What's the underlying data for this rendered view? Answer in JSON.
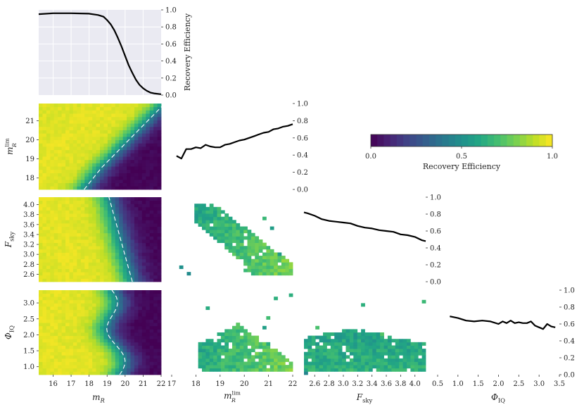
{
  "chart_data": {
    "type": "corner",
    "colormap": "viridis",
    "colorbar": {
      "label": "Recovery Efficiency",
      "ticks": [
        "0.0",
        "0.5",
        "1.0"
      ],
      "range": [
        0,
        1
      ],
      "location": "upper-right"
    },
    "efficiency_ticks": [
      "0.0",
      "0.2",
      "0.4",
      "0.6",
      "0.8",
      "1.0"
    ],
    "variables": [
      {
        "key": "mR",
        "xlabel": "m_R",
        "range": [
          15.2,
          22.0
        ],
        "ticks": [
          16,
          17,
          18,
          19,
          20,
          21,
          22
        ],
        "tick_labels": [
          "16",
          "17",
          "18",
          "19",
          "20",
          "21",
          "22"
        ]
      },
      {
        "key": "mlim",
        "xlabel": "m_R^lim",
        "range": [
          17.0,
          22.0
        ],
        "ticks": [
          17,
          18,
          19,
          20,
          21,
          22
        ],
        "tick_labels": [
          "17",
          "18",
          "19",
          "20",
          "21",
          "22"
        ],
        "yticks": [
          18,
          19,
          20,
          21
        ],
        "ytick_labels": [
          "18",
          "19",
          "20",
          "21"
        ],
        "yrange": [
          17.4,
          21.9
        ]
      },
      {
        "key": "fsky",
        "xlabel": "F_sky",
        "range": [
          2.45,
          4.15
        ],
        "ticks": [
          2.6,
          2.8,
          3.0,
          3.2,
          3.4,
          3.6,
          3.8,
          4.0
        ],
        "tick_labels": [
          "2.6",
          "2.8",
          "3.0",
          "3.2",
          "3.4",
          "3.6",
          "3.8",
          "4.0"
        ],
        "yticks": [
          2.6,
          2.8,
          3.0,
          3.2,
          3.4,
          3.6,
          3.8,
          4.0
        ],
        "ytick_labels": [
          "2.6",
          "2.8",
          "3.0",
          "3.2",
          "3.4",
          "3.6",
          "3.8",
          "4.0"
        ]
      },
      {
        "key": "phiiq",
        "xlabel": "Φ_IQ",
        "range": [
          0.5,
          3.5
        ],
        "ticks": [
          0.5,
          1.0,
          1.5,
          2.0,
          2.5,
          3.0,
          3.5
        ],
        "tick_labels": [
          "0.5",
          "1.0",
          "1.5",
          "2.0",
          "2.5",
          "3.0",
          "3.5"
        ],
        "yticks": [
          1.0,
          1.5,
          2.0,
          2.5,
          3.0
        ],
        "ytick_labels": [
          "1.0",
          "1.5",
          "2.0",
          "2.5",
          "3.0"
        ],
        "yrange": [
          0.75,
          3.4
        ]
      }
    ],
    "axis_labels": {
      "mR": {
        "main": "m",
        "sub": "R",
        "sup": ""
      },
      "mlim": {
        "main": "m",
        "sub": "R",
        "sup": "lim"
      },
      "fsky": {
        "main": "F",
        "sub": "sky",
        "sup": ""
      },
      "phiiq": {
        "main": "Φ",
        "sub": "IQ",
        "sup": ""
      }
    },
    "efficiency_label": "Recovery Efficiency",
    "diagonal": [
      {
        "var": "mR",
        "type": "line",
        "ylabel": "Recovery Efficiency",
        "ylim": [
          0,
          1
        ],
        "x": [
          15.2,
          16.0,
          17.0,
          18.0,
          18.5,
          18.8,
          19.0,
          19.2,
          19.4,
          19.6,
          19.8,
          20.0,
          20.2,
          20.4,
          20.6,
          20.8,
          21.0,
          21.2,
          21.4,
          21.6,
          22.0
        ],
        "y": [
          0.95,
          0.96,
          0.96,
          0.955,
          0.94,
          0.92,
          0.88,
          0.83,
          0.76,
          0.67,
          0.57,
          0.46,
          0.35,
          0.26,
          0.18,
          0.12,
          0.08,
          0.05,
          0.03,
          0.02,
          0.01
        ]
      },
      {
        "var": "mlim",
        "type": "line",
        "ylim": [
          0,
          1
        ],
        "x": [
          17.2,
          17.4,
          17.6,
          17.8,
          18.0,
          18.2,
          18.4,
          18.6,
          18.8,
          19.0,
          19.2,
          19.4,
          19.6,
          19.8,
          20.0,
          20.2,
          20.4,
          20.6,
          20.8,
          21.0,
          21.2,
          21.4,
          21.6,
          21.8,
          22.0
        ],
        "y": [
          0.39,
          0.36,
          0.47,
          0.47,
          0.49,
          0.48,
          0.52,
          0.5,
          0.49,
          0.49,
          0.52,
          0.53,
          0.55,
          0.57,
          0.58,
          0.6,
          0.62,
          0.64,
          0.66,
          0.67,
          0.7,
          0.71,
          0.73,
          0.74,
          0.76
        ]
      },
      {
        "var": "fsky",
        "type": "line",
        "ylim": [
          0,
          1
        ],
        "x": [
          2.45,
          2.5,
          2.6,
          2.7,
          2.8,
          2.9,
          3.0,
          3.1,
          3.2,
          3.3,
          3.4,
          3.5,
          3.6,
          3.7,
          3.8,
          3.9,
          4.0,
          4.1,
          4.15
        ],
        "y": [
          0.82,
          0.81,
          0.78,
          0.74,
          0.72,
          0.71,
          0.7,
          0.69,
          0.66,
          0.64,
          0.63,
          0.61,
          0.6,
          0.59,
          0.56,
          0.55,
          0.53,
          0.49,
          0.48
        ]
      },
      {
        "var": "phiiq",
        "type": "line",
        "ylim": [
          0,
          1
        ],
        "x": [
          0.8,
          1.0,
          1.2,
          1.4,
          1.6,
          1.8,
          2.0,
          2.1,
          2.2,
          2.3,
          2.4,
          2.5,
          2.6,
          2.7,
          2.8,
          2.9,
          3.0,
          3.1,
          3.2,
          3.3,
          3.4
        ],
        "y": [
          0.69,
          0.67,
          0.64,
          0.63,
          0.64,
          0.63,
          0.6,
          0.63,
          0.61,
          0.64,
          0.61,
          0.62,
          0.61,
          0.61,
          0.63,
          0.58,
          0.56,
          0.54,
          0.6,
          0.57,
          0.56
        ]
      }
    ],
    "off_diagonal": [
      {
        "x": "mR",
        "y": "mlim",
        "type": "heatmap",
        "contour": "50% dashed white"
      },
      {
        "x": "mR",
        "y": "fsky",
        "type": "heatmap",
        "contour": "50% dashed white"
      },
      {
        "x": "mR",
        "y": "phiiq",
        "type": "heatmap",
        "contour": "50% dashed white"
      },
      {
        "x": "mlim",
        "y": "fsky",
        "type": "heatmap",
        "note": "sparse"
      },
      {
        "x": "mlim",
        "y": "phiiq",
        "type": "heatmap",
        "note": "sparse"
      },
      {
        "x": "fsky",
        "y": "phiiq",
        "type": "heatmap",
        "note": "sparse"
      }
    ]
  }
}
